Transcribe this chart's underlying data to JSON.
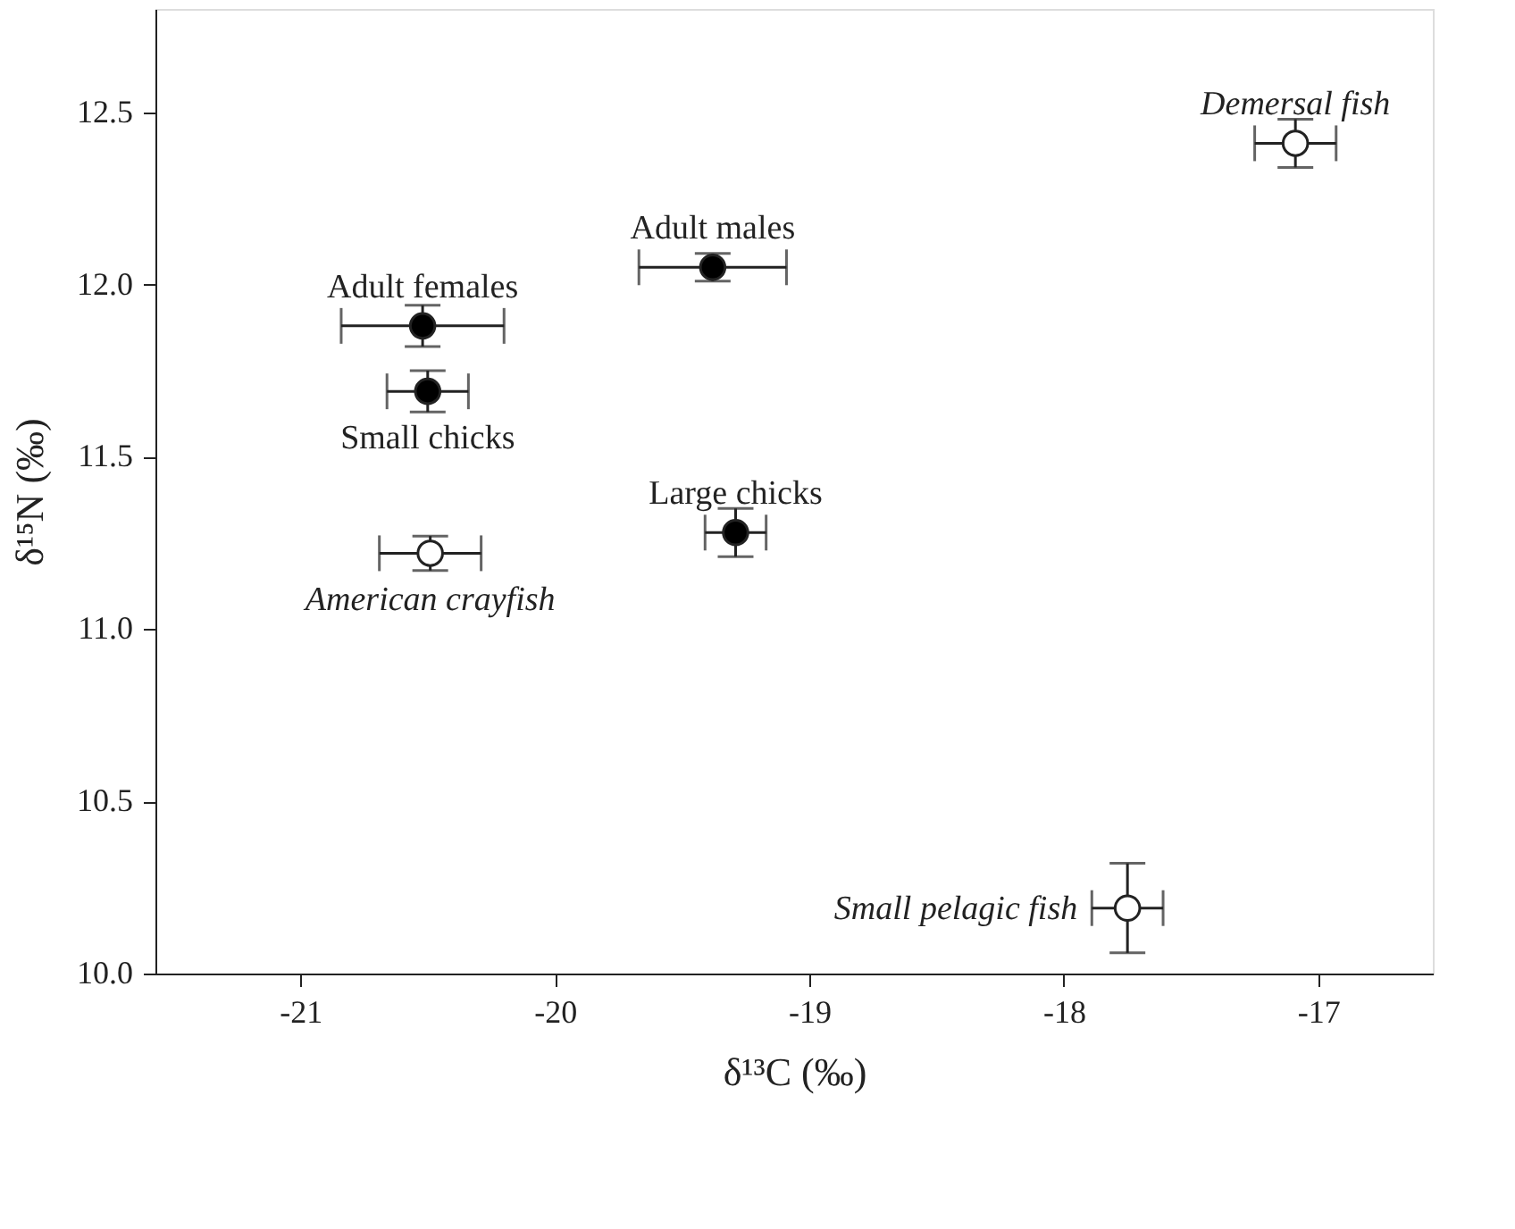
{
  "chart_data": {
    "type": "scatter",
    "xlabel": "δ¹³C (‰)",
    "ylabel": "δ¹⁵N (‰)",
    "xlim": [
      -21.57,
      -16.55
    ],
    "ylim": [
      10,
      12.8
    ],
    "xticks": [
      -21,
      -20,
      -19,
      -18,
      -17
    ],
    "yticks": [
      {
        "value": 10,
        "label": "10.0"
      },
      10.5,
      {
        "value": 11,
        "label": "11.0"
      },
      11.5,
      {
        "value": 12,
        "label": "12.0"
      },
      12.5
    ],
    "grid": false,
    "series": [
      {
        "color": "#000000",
        "x": [
          -20.52,
          -20.5,
          -19.38,
          -19.29
        ],
        "values": [
          11.88,
          11.69,
          12.05,
          11.28
        ],
        "errors": [
          0.06,
          0.06,
          0.04,
          0.07
        ],
        "xerrors": [
          0.32,
          0.16,
          0.29,
          0.12
        ],
        "value_labels": [
          "Adult females",
          "Small chicks",
          "Adult males",
          "Large chicks"
        ]
      },
      {
        "color": "#ffffff",
        "x": [
          -20.49,
          -17.09,
          -17.75
        ],
        "values": [
          11.22,
          12.41,
          10.19
        ],
        "errors": [
          0.05,
          0.07,
          0.13
        ],
        "xerrors": [
          0.2,
          0.16,
          0.14
        ],
        "value_labels": [
          "American crayfish",
          "Demersal fish",
          "Small pelagic fish"
        ]
      }
    ]
  }
}
